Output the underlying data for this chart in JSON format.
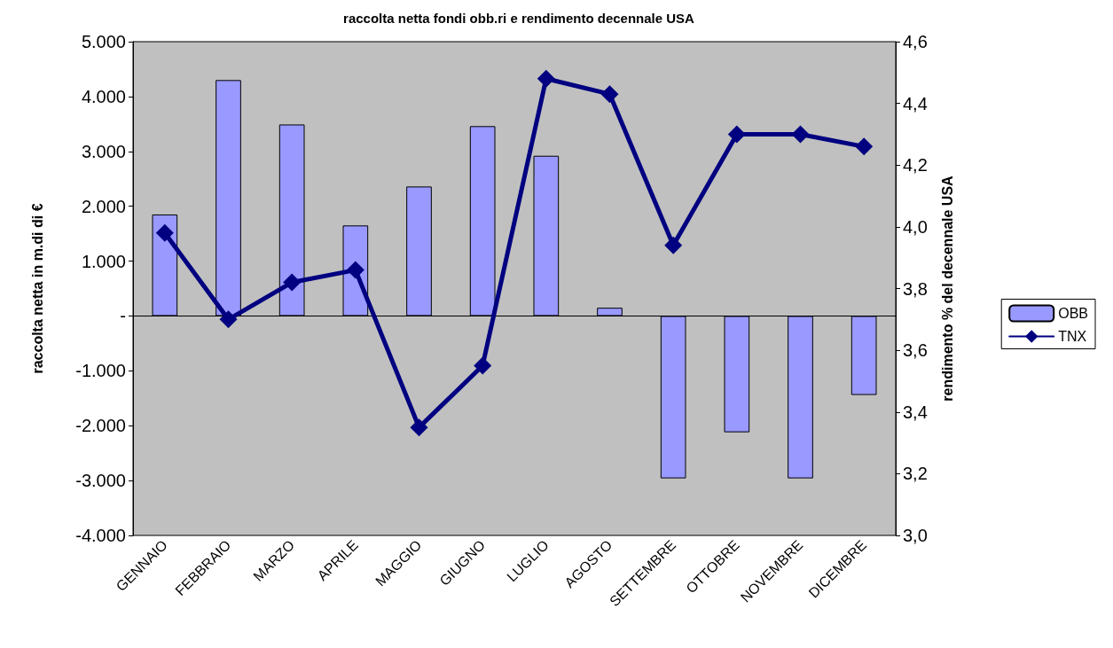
{
  "chart_data": {
    "type": "bar",
    "title": "raccolta netta fondi obb.ri e rendimento decennale USA",
    "ylabel": "raccolta netta in m.di di €",
    "y2label": "rendimento % del decennale USA",
    "categories": [
      "GENNAIO",
      "FEBBRAIO",
      "MARZO",
      "APRILE",
      "MAGGIO",
      "GIUGNO",
      "LUGLIO",
      "AGOSTO",
      "SETTEMBRE",
      "OTTOBRE",
      "NOVEMBRE",
      "DICEMBRE"
    ],
    "series": [
      {
        "name": "OBB",
        "color": "#9999ff",
        "values": [
          1850,
          4300,
          3490,
          1650,
          2360,
          3460,
          2920,
          150,
          -2960,
          -2120,
          -2960,
          -1440
        ]
      },
      {
        "name": "TNX",
        "type": "line",
        "axis": "y2",
        "color": "#000080",
        "marker": "diamond",
        "values": [
          3.98,
          3.7,
          3.82,
          3.86,
          3.35,
          3.55,
          4.48,
          4.43,
          3.94,
          4.3,
          4.3,
          4.26
        ]
      }
    ],
    "ylim": [
      -4000,
      5000
    ],
    "yticks": [
      {
        "value": -4000,
        "label": "-4.000"
      },
      {
        "value": -3000,
        "label": "-3.000"
      },
      {
        "value": -2000,
        "label": "-2.000"
      },
      {
        "value": -1000,
        "label": "-1.000"
      },
      {
        "value": 0,
        "label": "-"
      },
      {
        "value": 1000,
        "label": "1.000"
      },
      {
        "value": 2000,
        "label": "2.000"
      },
      {
        "value": 3000,
        "label": "3.000"
      },
      {
        "value": 4000,
        "label": "4.000"
      },
      {
        "value": 5000,
        "label": "5.000"
      }
    ],
    "y2lim": [
      3.0,
      4.6
    ],
    "y2ticks": [
      {
        "value": 3.0,
        "label": "3,0"
      },
      {
        "value": 3.2,
        "label": "3,2"
      },
      {
        "value": 3.4,
        "label": "3,4"
      },
      {
        "value": 3.6,
        "label": "3,6"
      },
      {
        "value": 3.8,
        "label": "3,8"
      },
      {
        "value": 4.0,
        "label": "4,0"
      },
      {
        "value": 4.2,
        "label": "4,2"
      },
      {
        "value": 4.4,
        "label": "4,4"
      },
      {
        "value": 4.6,
        "label": "4,6"
      }
    ],
    "legend": "right",
    "line_style": "solid"
  }
}
